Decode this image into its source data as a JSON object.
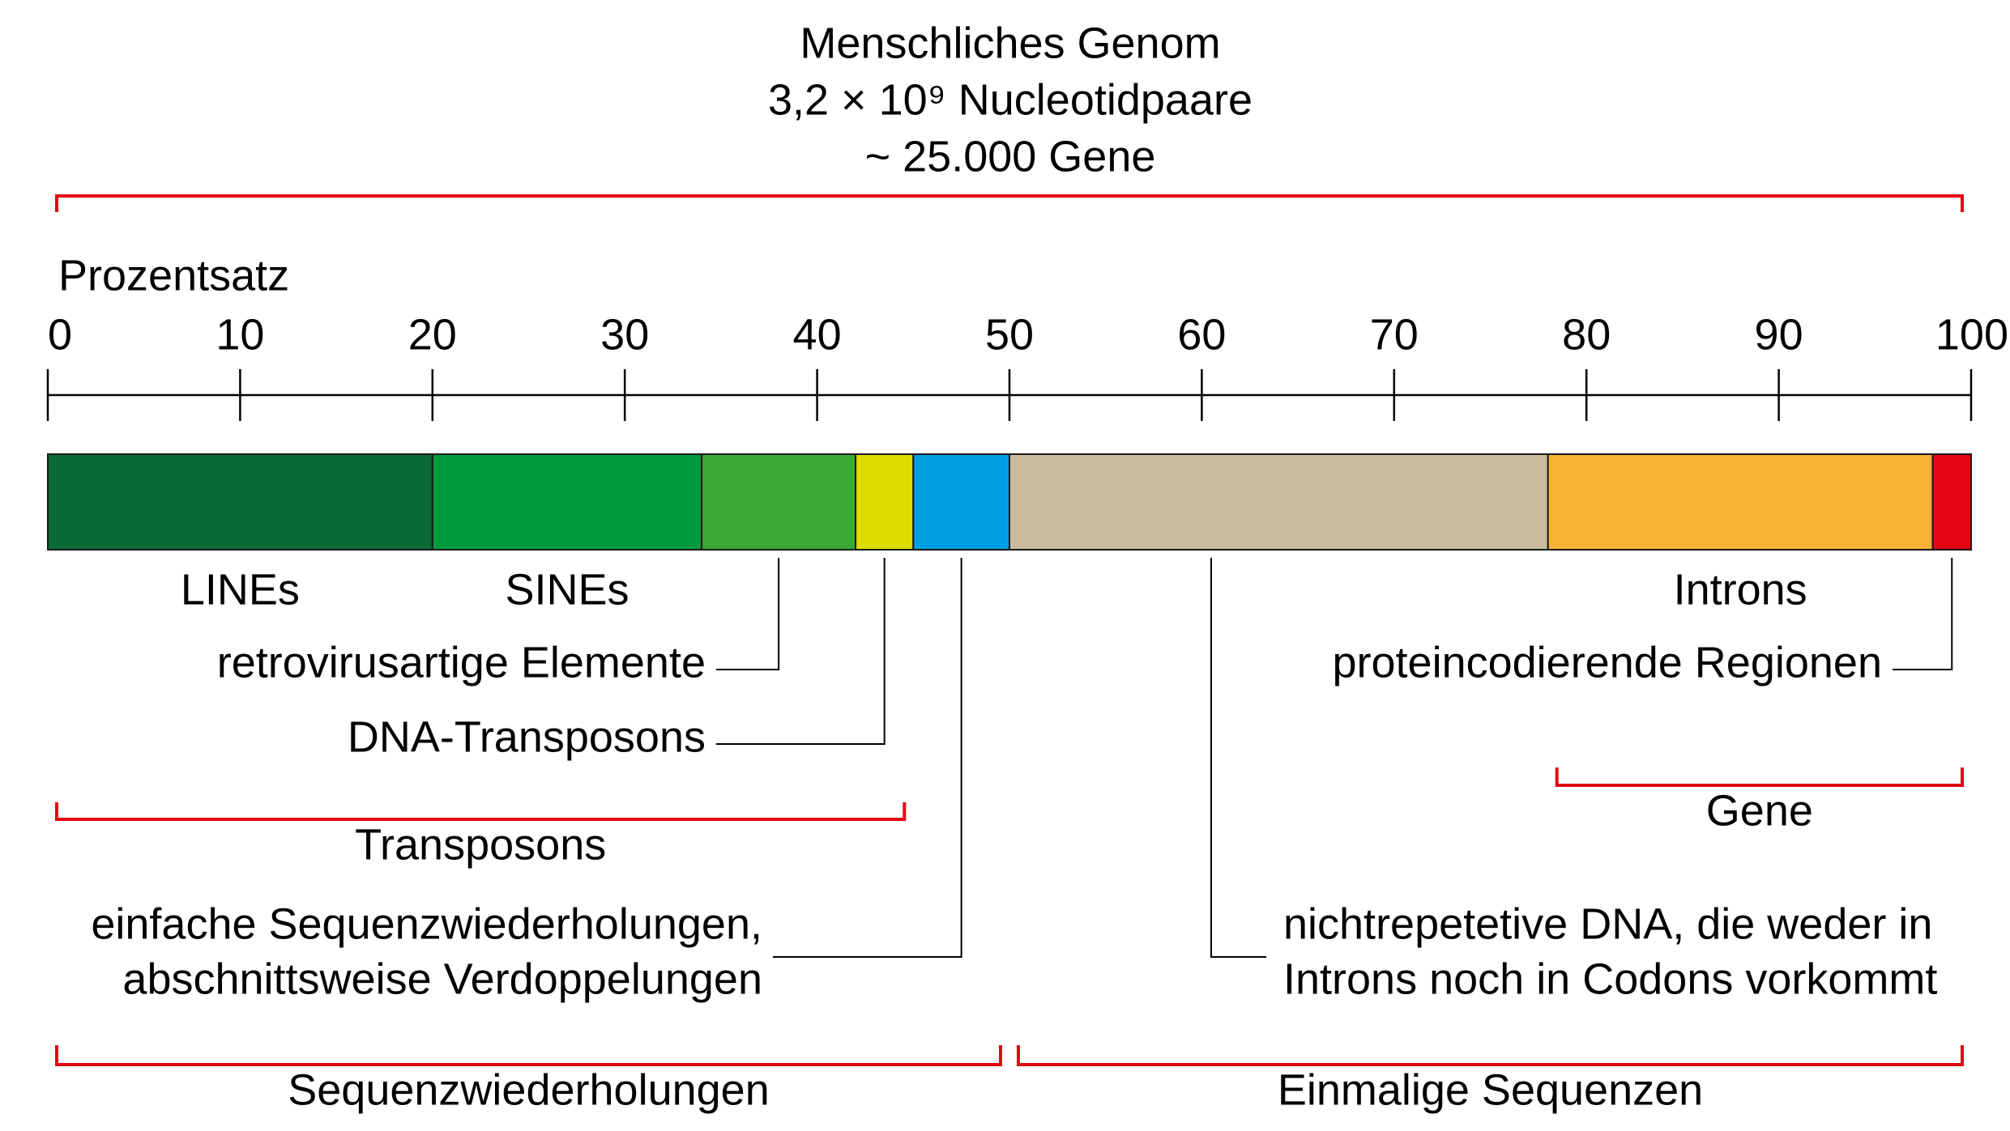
{
  "chart_data": {
    "type": "stacked-bar",
    "title": [
      "Menschliches Genom",
      "3,2 × 10⁹ Nucleotidpaare",
      "~ 25.000 Gene"
    ],
    "x_label": "Prozentsatz",
    "xlim": [
      0,
      100
    ],
    "xticks": [
      0,
      10,
      20,
      30,
      40,
      50,
      60,
      70,
      80,
      90,
      100
    ],
    "series": [
      {
        "name": [
          "LINEs"
        ],
        "color": "#0b6b37",
        "values": [
          20
        ]
      },
      {
        "name": [
          "SINEs"
        ],
        "color": "#009a3e",
        "values": [
          14
        ]
      },
      {
        "name": [
          "retrovirusartige Elemente"
        ],
        "color": "#3aaa35",
        "values": [
          8
        ]
      },
      {
        "name": [
          "DNA-Transposons"
        ],
        "color": "#dcdc00",
        "values": [
          3
        ]
      },
      {
        "name": [
          "einfache Sequenzwiederholungen,",
          "abschnittsweise Verdoppelungen"
        ],
        "color": "#009fe3",
        "values": [
          5
        ]
      },
      {
        "name": [
          "nichtrepetetive DNA, die weder in",
          "Introns noch in Codons vorkommt"
        ],
        "color": "#cbbca0",
        "values": [
          28
        ]
      },
      {
        "name": [
          "Introns"
        ],
        "color": "#f7b134",
        "values": [
          20
        ]
      },
      {
        "name": [
          "proteincodierende Regionen"
        ],
        "color": "#e30613",
        "values": [
          2
        ]
      }
    ],
    "brackets": [
      {
        "label": "Transposons",
        "range": [
          0,
          45
        ]
      },
      {
        "label": "Gene",
        "range": [
          78,
          100
        ]
      },
      {
        "label": "Sequenzwiederholungen",
        "range": [
          0,
          50
        ]
      },
      {
        "label": "Einmalige Sequenzen",
        "range": [
          50,
          100
        ]
      }
    ],
    "bracket_color": "#e30613"
  }
}
